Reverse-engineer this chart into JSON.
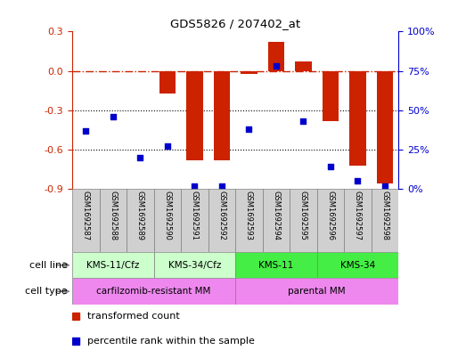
{
  "title": "GDS5826 / 207402_at",
  "samples": [
    "GSM1692587",
    "GSM1692588",
    "GSM1692589",
    "GSM1692590",
    "GSM1692591",
    "GSM1692592",
    "GSM1692593",
    "GSM1692594",
    "GSM1692595",
    "GSM1692596",
    "GSM1692597",
    "GSM1692598"
  ],
  "transformed_count": [
    -0.005,
    -0.005,
    -0.005,
    -0.17,
    -0.68,
    -0.68,
    -0.02,
    0.22,
    0.07,
    -0.38,
    -0.72,
    -0.86
  ],
  "percentile_rank": [
    37,
    46,
    20,
    27,
    2,
    2,
    38,
    78,
    43,
    14,
    5,
    2
  ],
  "bar_color": "#cc2200",
  "dot_color": "#0000cc",
  "left_ylim": [
    -0.9,
    0.3
  ],
  "left_yticks": [
    -0.9,
    -0.6,
    -0.3,
    0.0,
    0.3
  ],
  "right_ylim": [
    0,
    100
  ],
  "right_yticks": [
    0,
    25,
    50,
    75,
    100
  ],
  "right_yticklabels": [
    "0%",
    "25%",
    "50%",
    "75%",
    "100%"
  ],
  "hline_y": 0,
  "hline_color": "#cc2200",
  "dotted_line_y": [
    -0.3,
    -0.6
  ],
  "cell_line_groups": [
    {
      "label": "KMS-11/Cfz",
      "start": 0,
      "end": 2,
      "color": "#ccffcc"
    },
    {
      "label": "KMS-34/Cfz",
      "start": 3,
      "end": 5,
      "color": "#ccffcc"
    },
    {
      "label": "KMS-11",
      "start": 6,
      "end": 8,
      "color": "#44ee44"
    },
    {
      "label": "KMS-34",
      "start": 9,
      "end": 11,
      "color": "#44ee44"
    }
  ],
  "cell_type_groups": [
    {
      "label": "carfilzomib-resistant MM",
      "start": 0,
      "end": 5,
      "color": "#ee88ee"
    },
    {
      "label": "parental MM",
      "start": 6,
      "end": 11,
      "color": "#ee88ee"
    }
  ],
  "sample_box_color": "#d0d0d0",
  "legend_bar_label": "transformed count",
  "legend_dot_label": "percentile rank within the sample",
  "bar_width": 0.6,
  "arrow_color": "#888888",
  "cell_label_color": "#444444"
}
